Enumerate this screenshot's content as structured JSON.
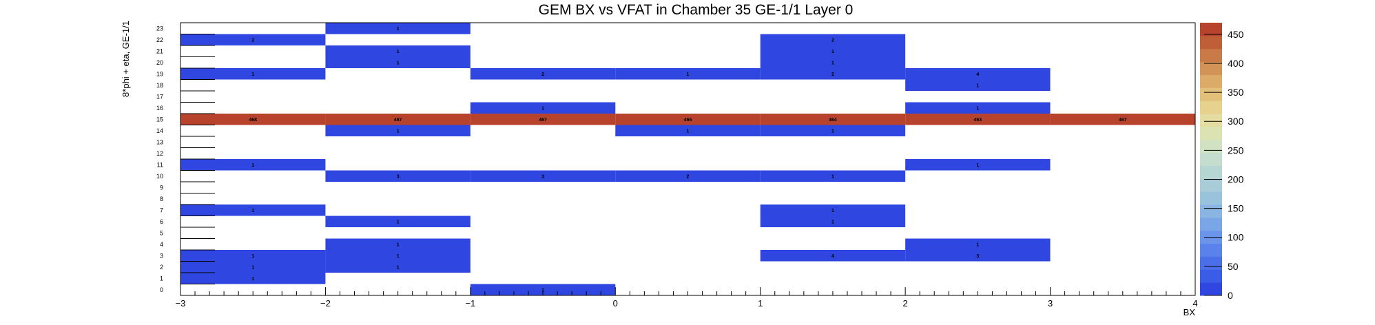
{
  "colors": {
    "low": "#2f47e0",
    "high": "#b8432c",
    "palette": [
      "#2f47e0",
      "#3a5ce6",
      "#4a6fe8",
      "#5b82ea",
      "#6b95ea",
      "#7aa6e8",
      "#8ab5e2",
      "#99c2dd",
      "#a8ccd8",
      "#b6d6d4",
      "#c4ddcf",
      "#d1e2c3",
      "#dde2b2",
      "#e4dca0",
      "#e6d18d",
      "#e3c07a",
      "#dcab68",
      "#d39356",
      "#ca7a46",
      "#bf5f38",
      "#b8432c"
    ]
  },
  "chart_data": {
    "type": "heatmap",
    "title": "GEM BX vs VFAT in Chamber 35 GE-1/1 Layer 0",
    "xlabel": "BX",
    "ylabel": "8*phi + eta, GE-1/1",
    "xlim": [
      -3,
      4
    ],
    "ylim": [
      0,
      24
    ],
    "zlim": [
      0,
      470
    ],
    "x_ticks": [
      -3,
      -2,
      -1,
      0,
      1,
      2,
      3,
      4
    ],
    "x_tick_labels": [
      "−3",
      "−2",
      "−1",
      "0",
      "1",
      "2",
      "3",
      "4"
    ],
    "y_ticks": [
      0,
      1,
      2,
      3,
      4,
      5,
      6,
      7,
      8,
      9,
      10,
      11,
      12,
      13,
      14,
      15,
      16,
      17,
      18,
      19,
      20,
      21,
      22,
      23
    ],
    "z_ticks": [
      0,
      50,
      100,
      150,
      200,
      250,
      300,
      350,
      400,
      450
    ],
    "cells": [
      {
        "x": -3,
        "y": 1,
        "value": 1
      },
      {
        "x": -3,
        "y": 2,
        "value": 1
      },
      {
        "x": -3,
        "y": 3,
        "value": 1
      },
      {
        "x": -3,
        "y": 7,
        "value": 1
      },
      {
        "x": -3,
        "y": 11,
        "value": 1
      },
      {
        "x": -3,
        "y": 15,
        "value": 468
      },
      {
        "x": -3,
        "y": 19,
        "value": 1
      },
      {
        "x": -3,
        "y": 22,
        "value": 2
      },
      {
        "x": -2,
        "y": 2,
        "value": 1
      },
      {
        "x": -2,
        "y": 3,
        "value": 1
      },
      {
        "x": -2,
        "y": 4,
        "value": 1
      },
      {
        "x": -2,
        "y": 6,
        "value": 1
      },
      {
        "x": -2,
        "y": 10,
        "value": 3
      },
      {
        "x": -2,
        "y": 14,
        "value": 1
      },
      {
        "x": -2,
        "y": 15,
        "value": 467
      },
      {
        "x": -2,
        "y": 20,
        "value": 1
      },
      {
        "x": -2,
        "y": 21,
        "value": 1
      },
      {
        "x": -2,
        "y": 23,
        "value": 1
      },
      {
        "x": -1,
        "y": 0,
        "value": 1
      },
      {
        "x": -1,
        "y": 10,
        "value": 3
      },
      {
        "x": -1,
        "y": 15,
        "value": 467
      },
      {
        "x": -1,
        "y": 16,
        "value": 1
      },
      {
        "x": -1,
        "y": 19,
        "value": 2
      },
      {
        "x": 0,
        "y": 10,
        "value": 2
      },
      {
        "x": 0,
        "y": 14,
        "value": 1
      },
      {
        "x": 0,
        "y": 15,
        "value": 466
      },
      {
        "x": 0,
        "y": 19,
        "value": 1
      },
      {
        "x": 1,
        "y": 3,
        "value": 4
      },
      {
        "x": 1,
        "y": 6,
        "value": 1
      },
      {
        "x": 1,
        "y": 7,
        "value": 1
      },
      {
        "x": 1,
        "y": 10,
        "value": 1
      },
      {
        "x": 1,
        "y": 14,
        "value": 1
      },
      {
        "x": 1,
        "y": 15,
        "value": 464
      },
      {
        "x": 1,
        "y": 19,
        "value": 2
      },
      {
        "x": 1,
        "y": 20,
        "value": 1
      },
      {
        "x": 1,
        "y": 21,
        "value": 1
      },
      {
        "x": 1,
        "y": 22,
        "value": 2
      },
      {
        "x": 2,
        "y": 3,
        "value": 3
      },
      {
        "x": 2,
        "y": 4,
        "value": 1
      },
      {
        "x": 2,
        "y": 11,
        "value": 1
      },
      {
        "x": 2,
        "y": 15,
        "value": 463
      },
      {
        "x": 2,
        "y": 16,
        "value": 1
      },
      {
        "x": 2,
        "y": 18,
        "value": 1
      },
      {
        "x": 2,
        "y": 19,
        "value": 4
      },
      {
        "x": 3,
        "y": 15,
        "value": 467
      }
    ]
  }
}
